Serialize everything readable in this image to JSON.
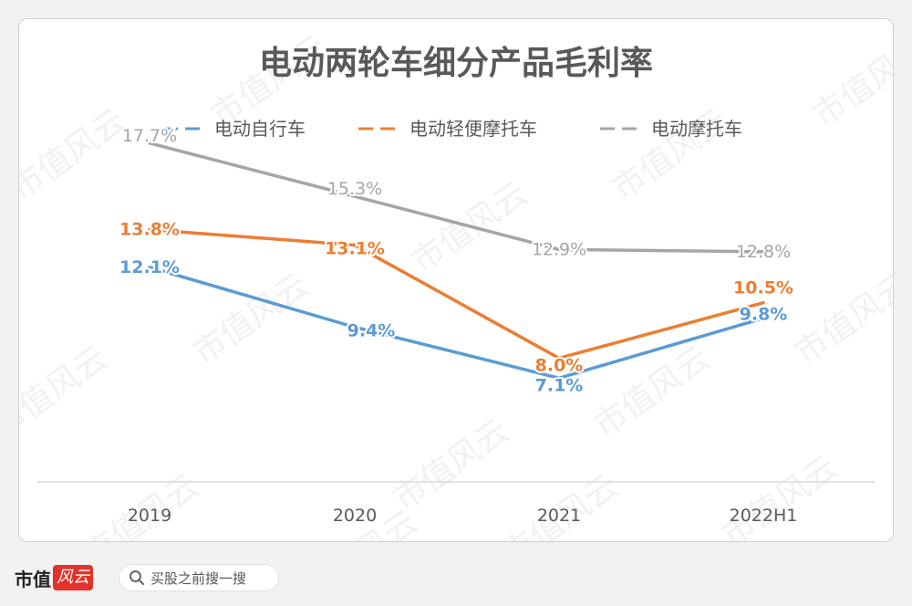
{
  "chart_data": {
    "type": "line",
    "title": "电动两轮车细分产品毛利率",
    "categories": [
      "2019",
      "2020",
      "2021",
      "2022H1"
    ],
    "series": [
      {
        "name": "电动自行车",
        "color": "#5b9bd5",
        "values": [
          12.1,
          9.4,
          7.1,
          9.8
        ],
        "labels": [
          "12.1%",
          "9.4%",
          "7.1%",
          "9.8%"
        ]
      },
      {
        "name": "电动轻便摩托车",
        "color": "#ed7d31",
        "values": [
          13.8,
          13.1,
          8.0,
          10.5
        ],
        "labels": [
          "13.8%",
          "13.1%",
          "8.0%",
          "10.5%"
        ]
      },
      {
        "name": "电动摩托车",
        "color": "#a5a5a5",
        "values": [
          17.7,
          15.3,
          12.9,
          12.8
        ],
        "labels": [
          "17.7%",
          "15.3%",
          "12.9%",
          "12.8%"
        ]
      }
    ],
    "ylim": [
      2.5,
      20
    ],
    "grid": false,
    "legend": "top-center"
  },
  "watermark": "市值风云",
  "footer": {
    "brand_text": "市值",
    "brand_badge": "风云",
    "search_text": "买股之前搜一搜",
    "search_icon": "search-icon"
  }
}
